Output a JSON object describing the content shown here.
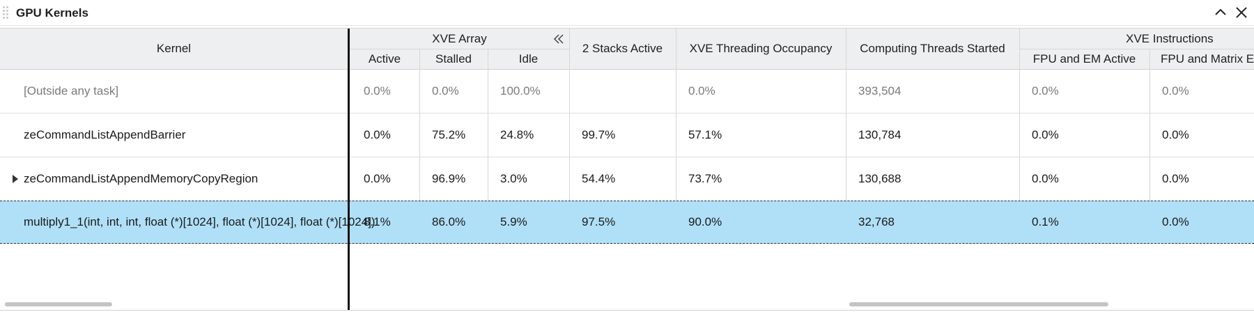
{
  "window": {
    "title": "GPU Kernels"
  },
  "header": {
    "kernel": "Kernel",
    "xve_array_group": "XVE Array",
    "xve_array_cols": [
      "Active",
      "Stalled",
      "Idle"
    ],
    "stacks_active": "2 Stacks Active",
    "threading_occupancy": "XVE Threading Occupancy",
    "threads_started": "Computing Threads Started",
    "xve_instructions_group": "XVE Instructions",
    "xve_instructions_cols": [
      "FPU and EM Active",
      "FPU and Matrix E"
    ]
  },
  "rows": [
    {
      "kernel": "[Outside any task]",
      "active": "0.0%",
      "stalled": "0.0%",
      "idle": "100.0%",
      "stacks": "",
      "occupancy": "0.0%",
      "threads": "393,504",
      "fpu_em": "0.0%",
      "fpu_matrix": "0.0%"
    },
    {
      "kernel": "zeCommandListAppendBarrier",
      "active": "0.0%",
      "stalled": "75.2%",
      "idle": "24.8%",
      "stacks": "99.7%",
      "occupancy": "57.1%",
      "threads": "130,784",
      "fpu_em": "0.0%",
      "fpu_matrix": "0.0%"
    },
    {
      "kernel": "zeCommandListAppendMemoryCopyRegion",
      "active": "0.0%",
      "stalled": "96.9%",
      "idle": "3.0%",
      "stacks": "54.4%",
      "occupancy": "73.7%",
      "threads": "130,688",
      "fpu_em": "0.0%",
      "fpu_matrix": "0.0%"
    },
    {
      "kernel": "multiply1_1(int, int, int, float (*)[1024], float (*)[1024], float (*)[1024])",
      "active": "8.1%",
      "stalled": "86.0%",
      "idle": "5.9%",
      "stacks": "97.5%",
      "occupancy": "90.0%",
      "threads": "32,768",
      "fpu_em": "0.1%",
      "fpu_matrix": "0.0%"
    }
  ],
  "colors": {
    "selected_row": "#b0e0f7",
    "header_bg": "#eeeff1"
  },
  "icons": [
    "drag-grip-icon",
    "collapse-panel-icon",
    "close-icon",
    "collapse-columns-icon",
    "expand-row-icon"
  ]
}
